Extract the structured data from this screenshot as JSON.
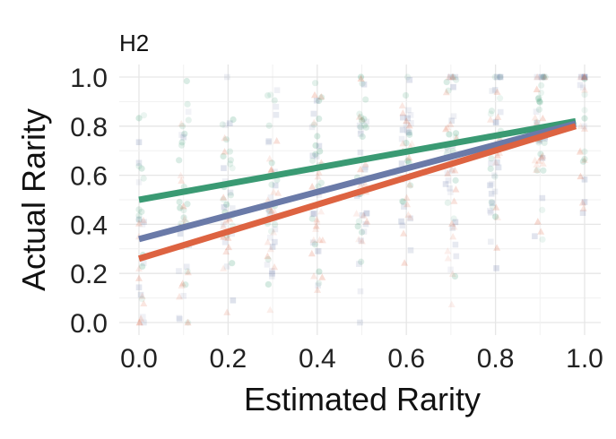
{
  "chart_data": {
    "type": "scatter",
    "title": "H2",
    "xlabel": "Estimated Rarity",
    "ylabel": "Actual Rarity",
    "xlim": [
      0.0,
      1.0
    ],
    "ylim": [
      0.0,
      1.0
    ],
    "x_ticks": [
      "0.0",
      "0.2",
      "0.4",
      "0.6",
      "0.8",
      "1.0"
    ],
    "y_ticks": [
      "0.0",
      "0.2",
      "0.4",
      "0.6",
      "0.8",
      "1.0"
    ],
    "grid": true,
    "legend": "none",
    "series": [
      {
        "name": "green",
        "color": "#3a9a73",
        "marker": "circle",
        "fit_line": {
          "x": [
            0.0,
            0.98
          ],
          "y": [
            0.5,
            0.82
          ]
        }
      },
      {
        "name": "blue",
        "color": "#6a7aa8",
        "marker": "square",
        "fit_line": {
          "x": [
            0.0,
            0.98
          ],
          "y": [
            0.34,
            0.81
          ]
        }
      },
      {
        "name": "orange",
        "color": "#dd6341",
        "marker": "triangle",
        "fit_line": {
          "x": [
            0.0,
            0.98
          ],
          "y": [
            0.26,
            0.8
          ]
        }
      }
    ]
  }
}
